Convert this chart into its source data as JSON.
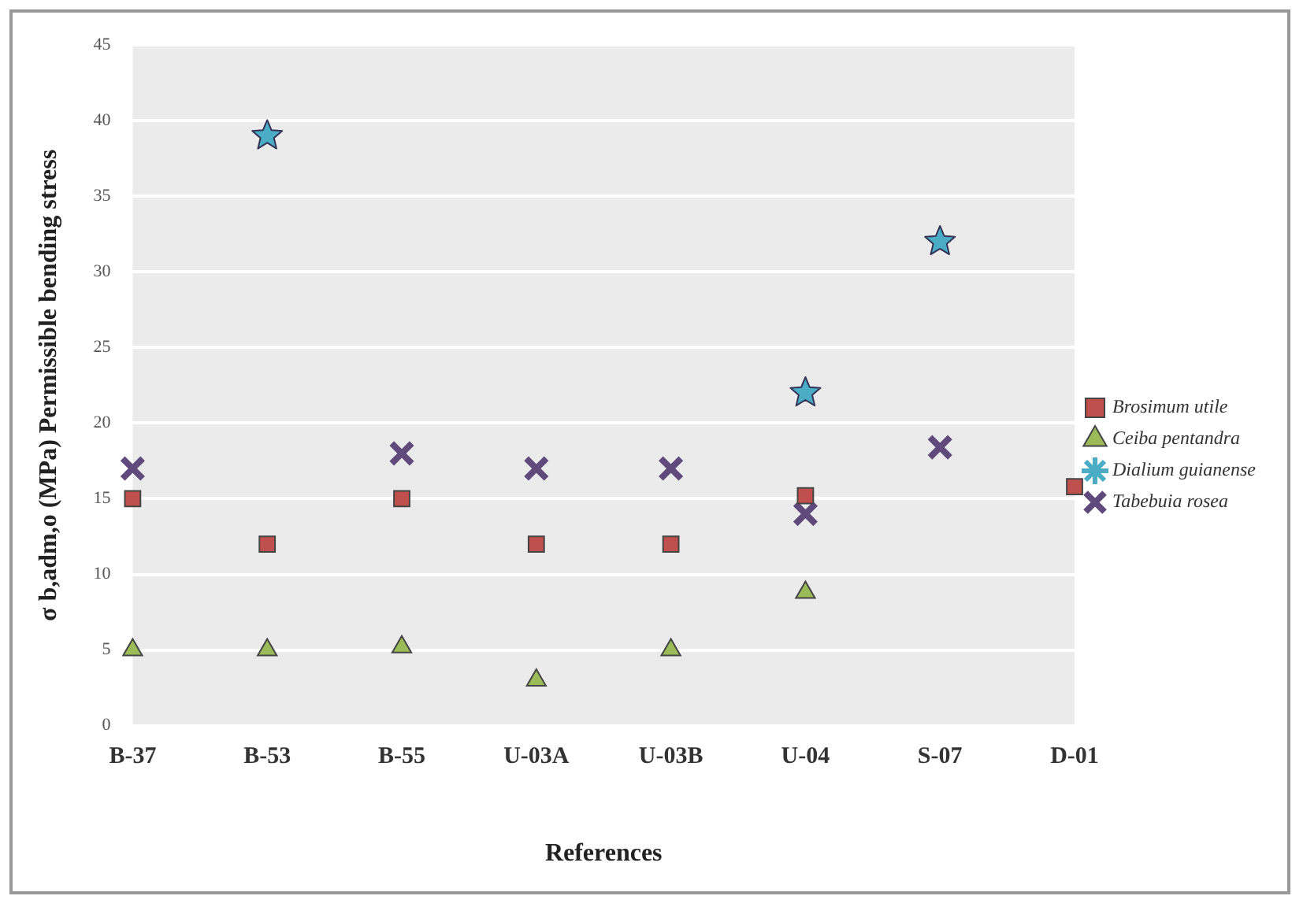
{
  "chart_data": {
    "type": "scatter",
    "xlabel": "References",
    "ylabel": "σ b,adm,o (MPa) Permissible bending stress",
    "categories": [
      "B-37",
      "B-53",
      "B-55",
      "U-03A",
      "U-03B",
      "U-04",
      "S-07",
      "D-01"
    ],
    "series": [
      {
        "name": "Brosimum utile",
        "color": "#c0504d",
        "marker": "square",
        "values": [
          15,
          12,
          15,
          12,
          12,
          15.2,
          null,
          15.8
        ]
      },
      {
        "name": "Ceiba pentandra",
        "color": "#9bbb59",
        "marker": "triangle",
        "values": [
          5,
          5,
          5.2,
          3,
          5,
          8.8,
          null,
          null
        ]
      },
      {
        "name": "Dialium guianense",
        "color": "#4bacc6",
        "marker": "star",
        "values": [
          null,
          39,
          null,
          null,
          null,
          22,
          32,
          null
        ]
      },
      {
        "name": "Tabebuia rosea",
        "color": "#604a7b",
        "marker": "cross",
        "values": [
          17,
          null,
          18,
          17,
          17,
          14,
          18.4,
          null
        ]
      }
    ],
    "ylim": [
      0,
      45
    ],
    "yticks": [
      0,
      5,
      10,
      15,
      20,
      25,
      30,
      35,
      40,
      45
    ],
    "grid": "y",
    "legend": "right"
  }
}
